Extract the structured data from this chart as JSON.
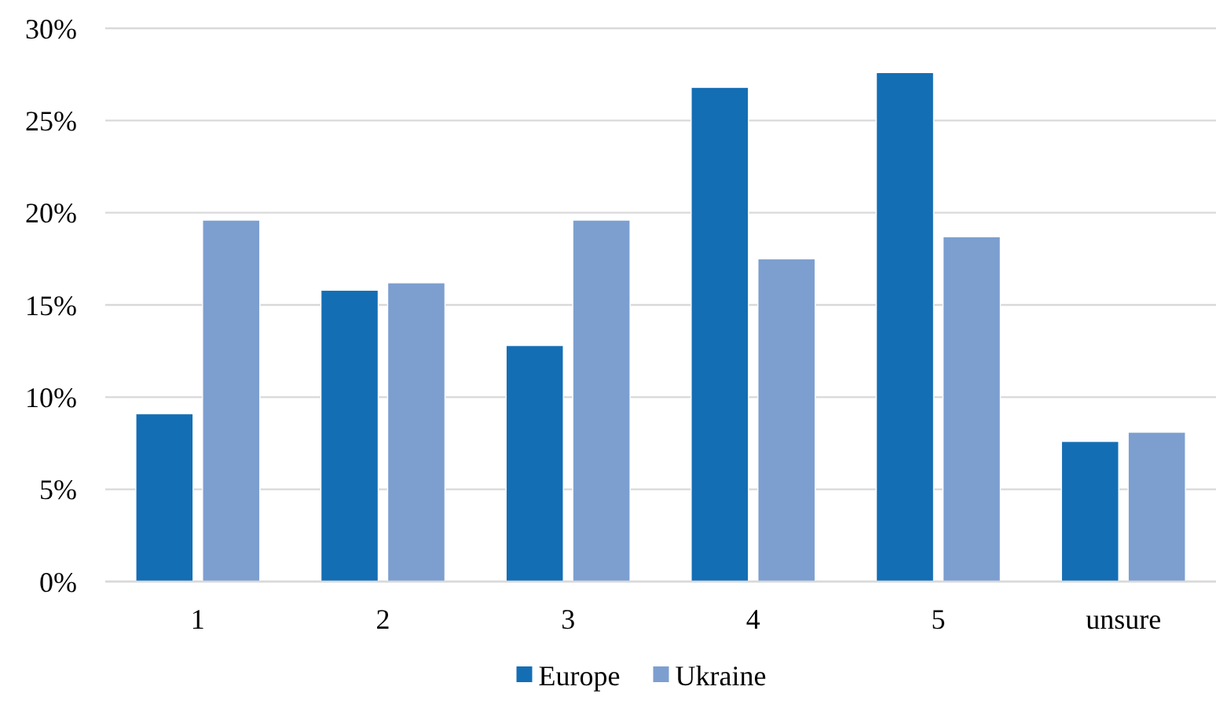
{
  "chart_data": {
    "type": "bar",
    "categories": [
      "1",
      "2",
      "3",
      "4",
      "5",
      "unsure"
    ],
    "series": [
      {
        "name": "Europe",
        "color": "#146eb4",
        "values": [
          9.1,
          15.8,
          12.8,
          26.8,
          27.6,
          7.6
        ]
      },
      {
        "name": "Ukraine",
        "color": "#7c9fd0",
        "values": [
          19.6,
          16.2,
          19.6,
          17.5,
          18.7,
          8.1
        ]
      }
    ],
    "ylim": [
      0,
      30
    ],
    "yticks": [
      {
        "value": 0,
        "label": "0%"
      },
      {
        "value": 5,
        "label": "5%"
      },
      {
        "value": 10,
        "label": "10%"
      },
      {
        "value": 15,
        "label": "15%"
      },
      {
        "value": 20,
        "label": "20%"
      },
      {
        "value": 25,
        "label": "25%"
      },
      {
        "value": 30,
        "label": "30%"
      }
    ],
    "grid": "y",
    "legend": "bottom"
  }
}
